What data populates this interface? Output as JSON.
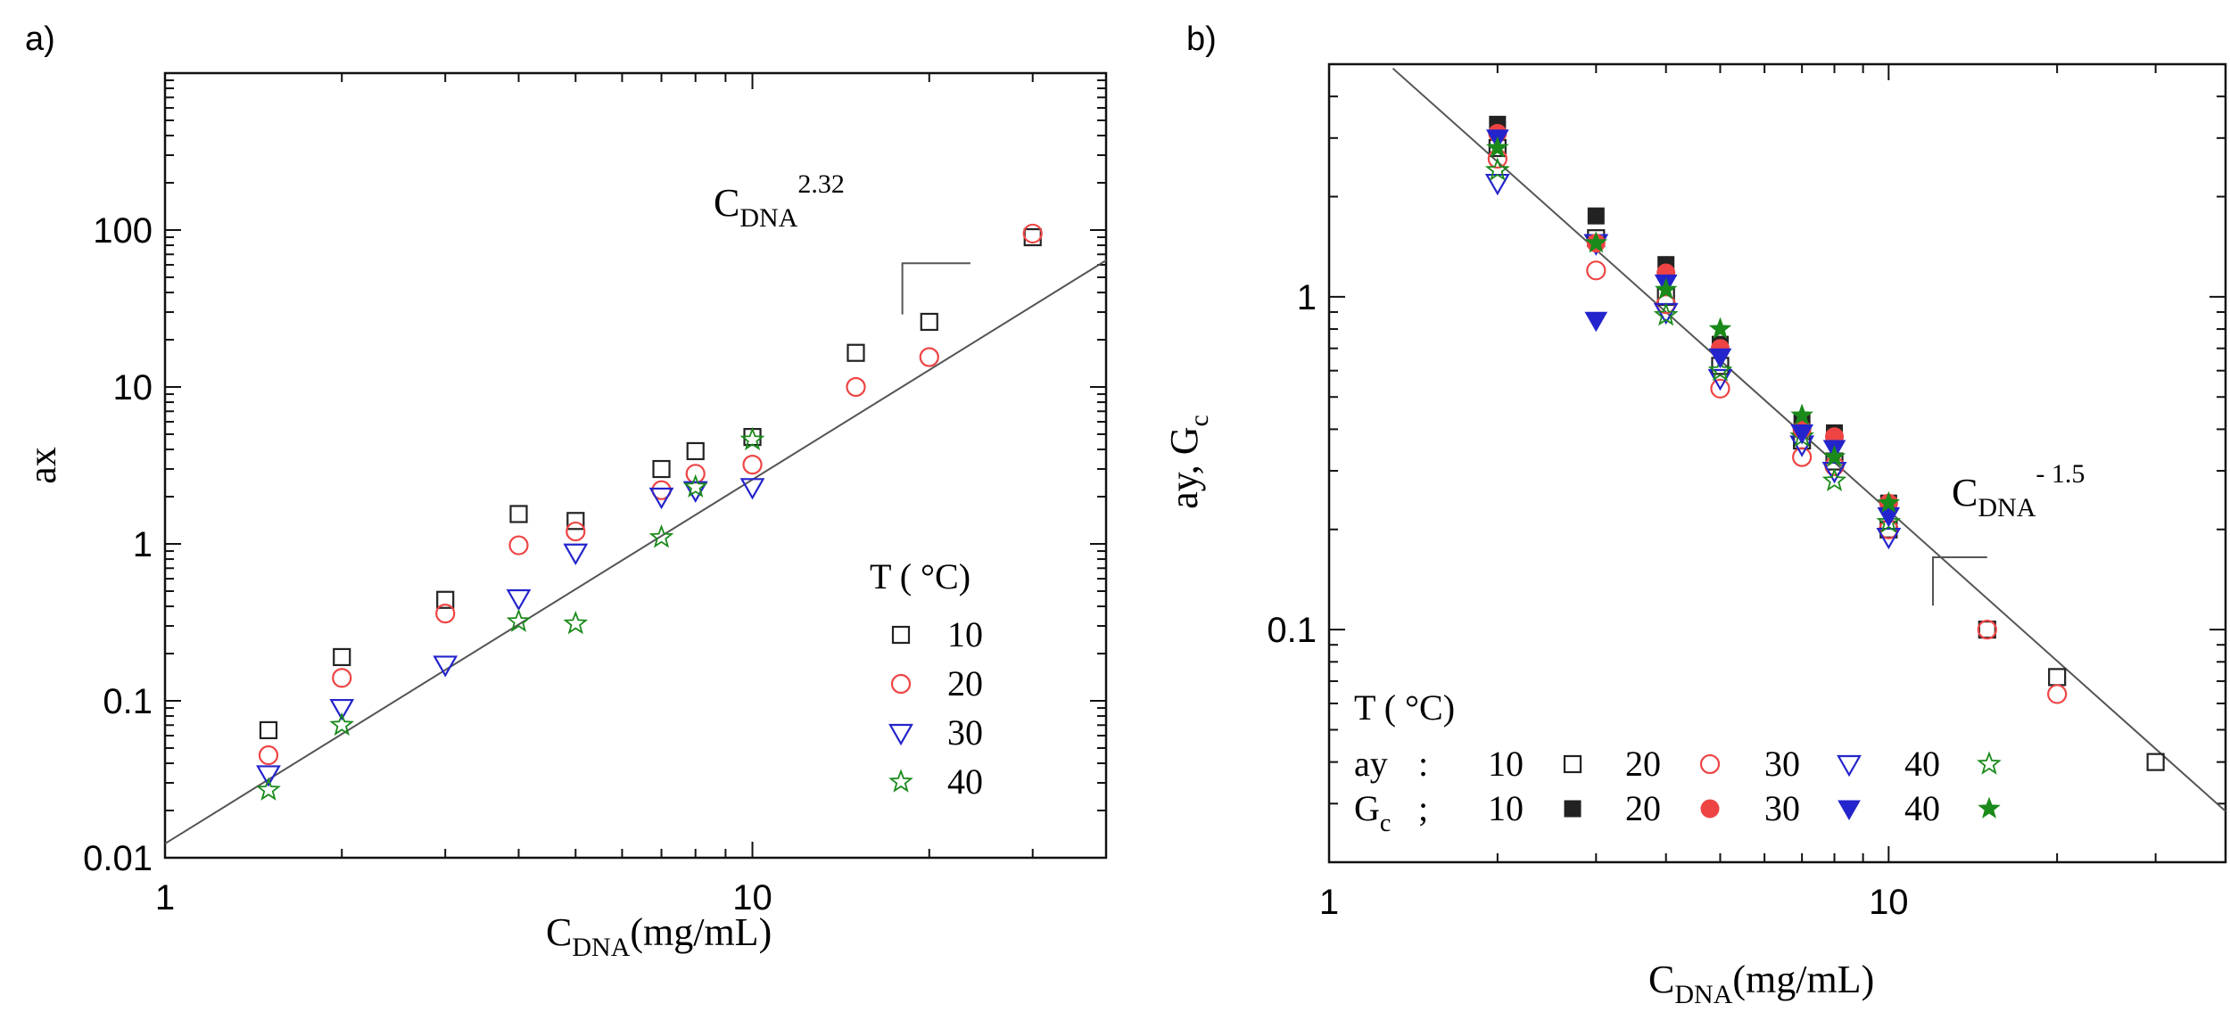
{
  "colors": {
    "s10": "#222222",
    "s20": "#ee4444",
    "s30": "#2424cc",
    "s40": "#1a8a1a",
    "fit": "#555555",
    "axis": "#111111"
  },
  "chart_data": [
    {
      "panel_label": "a)",
      "type": "scatter",
      "xscale": "log",
      "yscale": "log",
      "xlim": [
        1,
        40
      ],
      "ylim": [
        0.01,
        1000
      ],
      "xlabel": {
        "main": "C",
        "sub": "DNA",
        "rest": "(mg/mL)"
      },
      "ylabel": "ax",
      "x_tick_labels": [
        {
          "value": 1,
          "label": "1"
        },
        {
          "value": 10,
          "label": "10"
        }
      ],
      "y_tick_labels": [
        {
          "value": 0.01,
          "label": "0.01"
        },
        {
          "value": 0.1,
          "label": "0.1"
        },
        {
          "value": 1,
          "label": "1"
        },
        {
          "value": 10,
          "label": "10"
        },
        {
          "value": 100,
          "label": "100"
        }
      ],
      "fit": {
        "prefactor": 0.0123,
        "exponent": 2.32,
        "x_range": [
          1,
          40
        ]
      },
      "fit_annotation": {
        "main": "C",
        "sub": "DNA",
        "sup": "2.32"
      },
      "slope_triangle": {
        "x0": 18,
        "x1": 23.5,
        "y_top": 61.4,
        "y_bottom": 29
      },
      "legend": {
        "title": "T ( °C)",
        "placement": "right-middle",
        "entries": [
          {
            "label": "10",
            "series": "s10"
          },
          {
            "label": "20",
            "series": "s20"
          },
          {
            "label": "30",
            "series": "s30"
          },
          {
            "label": "40",
            "series": "s40"
          }
        ]
      },
      "series": [
        {
          "name": "10",
          "key": "s10",
          "marker": "square",
          "filled": false,
          "x": [
            1.5,
            2,
            3,
            4,
            5,
            7,
            8,
            10,
            15,
            20,
            30
          ],
          "y": [
            0.065,
            0.19,
            0.44,
            1.55,
            1.4,
            3.0,
            3.9,
            4.8,
            16.5,
            26,
            90
          ]
        },
        {
          "name": "20",
          "key": "s20",
          "marker": "circle",
          "filled": false,
          "x": [
            1.5,
            2,
            3,
            4,
            5,
            7,
            8,
            10,
            15,
            20,
            30
          ],
          "y": [
            0.045,
            0.14,
            0.36,
            0.98,
            1.2,
            2.2,
            2.8,
            3.2,
            10,
            15.5,
            95
          ]
        },
        {
          "name": "30",
          "key": "s30",
          "marker": "triangle-down",
          "filled": false,
          "x": [
            1.5,
            2,
            3,
            4,
            5,
            7,
            8,
            10
          ],
          "y": [
            0.034,
            0.09,
            0.17,
            0.45,
            0.88,
            2.0,
            2.2,
            2.3
          ]
        },
        {
          "name": "40",
          "key": "s40",
          "marker": "star",
          "filled": false,
          "x": [
            1.5,
            2,
            4,
            5,
            7,
            8,
            10
          ],
          "y": [
            0.027,
            0.07,
            0.32,
            0.31,
            1.1,
            2.3,
            4.6
          ]
        }
      ]
    },
    {
      "panel_label": "b)",
      "type": "scatter",
      "xscale": "log",
      "yscale": "log",
      "xlim": [
        1,
        40
      ],
      "ylim": [
        0.02,
        5
      ],
      "xlabel": {
        "main": "C",
        "sub": "DNA",
        "rest": "(mg/mL)"
      },
      "ylabel": {
        "main": "ay,  G",
        "sub": "c"
      },
      "x_tick_labels": [
        {
          "value": 1,
          "label": "1"
        },
        {
          "value": 10,
          "label": "10"
        }
      ],
      "y_tick_labels": [
        {
          "value": 0.1,
          "label": "0.1"
        },
        {
          "value": 1,
          "label": "1"
        }
      ],
      "fit": {
        "prefactor": 7.2,
        "exponent": -1.5,
        "x_range": [
          1.3,
          40
        ]
      },
      "fit_annotation": {
        "main": "C",
        "sub": "DNA",
        "sup": "- 1.5"
      },
      "slope_triangle": {
        "x0": 12,
        "x1": 15,
        "y_top": 0.165,
        "y_bottom": 0.118
      },
      "legend": {
        "title": "T ( °C)",
        "placement": "bottom-left",
        "rows": [
          {
            "label": "ay",
            "label_sub": "",
            "sep": ":",
            "entries": [
              {
                "key": "ay10",
                "value": "10"
              },
              {
                "key": "ay20",
                "value": "20"
              },
              {
                "key": "ay30",
                "value": "30"
              },
              {
                "key": "ay40",
                "value": "40"
              }
            ]
          },
          {
            "label": "G",
            "label_sub": "c",
            "sep": ";",
            "entries": [
              {
                "key": "gc10",
                "value": "10"
              },
              {
                "key": "gc20",
                "value": "20"
              },
              {
                "key": "gc30",
                "value": "30"
              },
              {
                "key": "gc40",
                "value": "40"
              }
            ]
          }
        ]
      },
      "series": [
        {
          "name": "ay 10",
          "key": "ay10",
          "color_key": "s10",
          "marker": "square",
          "filled": false,
          "x": [
            2,
            3,
            4,
            5,
            7,
            8,
            10,
            15,
            20,
            30
          ],
          "y": [
            2.8,
            1.5,
            1.0,
            0.62,
            0.37,
            0.32,
            0.2,
            0.1,
            0.072,
            0.04
          ]
        },
        {
          "name": "ay 20",
          "key": "ay20",
          "color_key": "s20",
          "marker": "circle",
          "filled": false,
          "x": [
            2,
            3,
            4,
            5,
            7,
            8,
            10,
            15,
            20
          ],
          "y": [
            2.6,
            1.2,
            0.95,
            0.53,
            0.33,
            0.31,
            0.2,
            0.1,
            0.064
          ]
        },
        {
          "name": "ay 30",
          "key": "ay30",
          "color_key": "s30",
          "marker": "triangle-down",
          "filled": false,
          "x": [
            2,
            3,
            4,
            5,
            7,
            8,
            10
          ],
          "y": [
            2.2,
            1.45,
            0.9,
            0.57,
            0.36,
            0.3,
            0.19
          ]
        },
        {
          "name": "ay 40",
          "key": "ay40",
          "color_key": "s40",
          "marker": "star",
          "filled": false,
          "x": [
            2,
            4,
            5,
            7,
            8,
            10
          ],
          "y": [
            2.4,
            0.88,
            0.6,
            0.38,
            0.28,
            0.21
          ]
        },
        {
          "name": "Gc 10",
          "key": "gc10",
          "color_key": "s10",
          "marker": "square",
          "filled": true,
          "x": [
            2,
            3,
            4,
            5,
            7,
            8,
            10
          ],
          "y": [
            3.3,
            1.75,
            1.25,
            0.72,
            0.42,
            0.39,
            0.24
          ]
        },
        {
          "name": "Gc 20",
          "key": "gc20",
          "color_key": "s20",
          "marker": "circle",
          "filled": true,
          "x": [
            2,
            3,
            4,
            5,
            7,
            8,
            10
          ],
          "y": [
            3.1,
            1.45,
            1.18,
            0.7,
            0.4,
            0.38,
            0.24
          ]
        },
        {
          "name": "Gc 30",
          "key": "gc30",
          "color_key": "s30",
          "marker": "triangle-down",
          "filled": true,
          "x": [
            2,
            3,
            4,
            5,
            7,
            8,
            10
          ],
          "y": [
            3.0,
            0.85,
            1.1,
            0.66,
            0.39,
            0.35,
            0.22
          ]
        },
        {
          "name": "Gc 40",
          "key": "gc40",
          "color_key": "s40",
          "marker": "star",
          "filled": true,
          "x": [
            2,
            3,
            4,
            5,
            7,
            8,
            10
          ],
          "y": [
            2.8,
            1.45,
            1.05,
            0.8,
            0.44,
            0.33,
            0.24
          ]
        }
      ]
    }
  ]
}
